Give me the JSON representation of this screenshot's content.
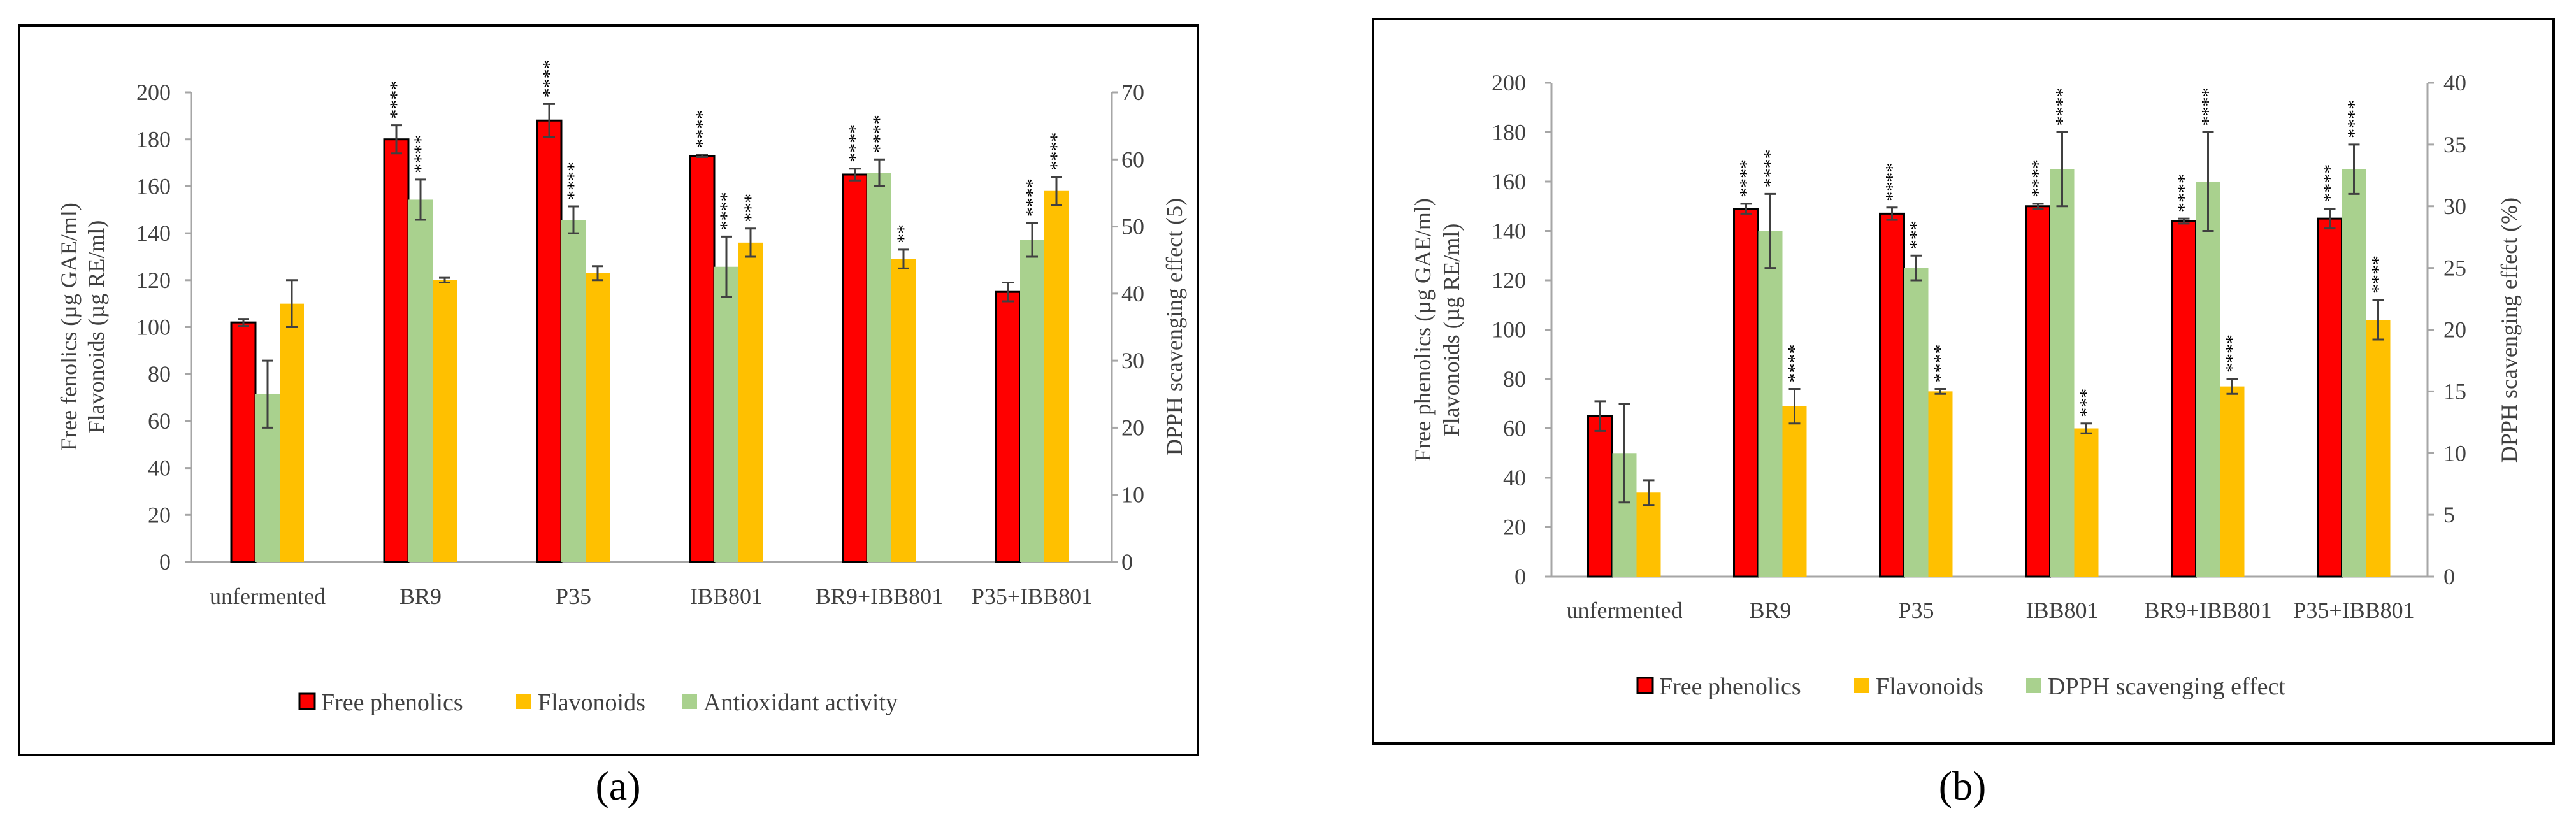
{
  "colors": {
    "free_phenolics": "#ff0000",
    "flavonoids": "#ffc000",
    "antioxidant": "#a9d18e",
    "bar_outline": "#000000",
    "axis": "#a6a6a6",
    "text": "#404040"
  },
  "chart_data": [
    {
      "panel_label": "(a)",
      "type": "bar",
      "categories": [
        "unfermented",
        "BR9",
        "P35",
        "IBB801",
        "BR9+IBB801",
        "P35+IBB801"
      ],
      "y_left_label_line1": "Free fenolics (µg GAE/ml)",
      "y_left_label_line2": "Flavonoids (µg RE/ml)",
      "y_right_label": "DPPH scavenging effect (5)",
      "ylim_left": [
        0,
        200
      ],
      "ylim_right": [
        0,
        70
      ],
      "left_ticks": [
        "0",
        "20",
        "40",
        "60",
        "80",
        "100",
        "120",
        "140",
        "160",
        "180",
        "200"
      ],
      "right_ticks": [
        "0",
        "10",
        "20",
        "30",
        "40",
        "50",
        "60",
        "70"
      ],
      "bar_order": [
        "Free phenolics",
        "Antioxidant activity",
        "Flavonoids"
      ],
      "legend": [
        "Free phenolics",
        "Flavonoids",
        "Antioxidant activity"
      ],
      "series": [
        {
          "name": "Free phenolics",
          "color_key": "free_phenolics",
          "axis": "left",
          "values": [
            102,
            180,
            188,
            173,
            165,
            115
          ],
          "errors": [
            1.5,
            6,
            7,
            0.5,
            2.5,
            4
          ],
          "sig": [
            "",
            "****",
            "****",
            "****",
            "****",
            ""
          ]
        },
        {
          "name": "Antioxidant activity",
          "color_key": "antioxidant",
          "axis": "right",
          "values": [
            25,
            54,
            51,
            44,
            58,
            48
          ],
          "errors": [
            5,
            3,
            2,
            4.5,
            2,
            2.5
          ],
          "sig": [
            "",
            "****",
            "****",
            "****",
            "****",
            "****"
          ]
        },
        {
          "name": "Flavonoids",
          "color_key": "flavonoids",
          "axis": "left",
          "values": [
            110,
            120,
            123,
            136,
            129,
            158
          ],
          "errors": [
            10,
            1,
            3,
            6,
            4,
            6
          ],
          "sig": [
            "",
            "",
            "",
            "***",
            "**",
            "****"
          ]
        }
      ]
    },
    {
      "panel_label": "(b)",
      "type": "bar",
      "categories": [
        "unfermented",
        "BR9",
        "P35",
        "IBB801",
        "BR9+IBB801",
        "P35+IBB801"
      ],
      "y_left_label_line1": "Free phenolics (µg GAE/ml)",
      "y_left_label_line2": "Flavonoids (µg RE/ml)",
      "y_right_label": "DPPH scavenging effect (%)",
      "ylim_left": [
        0,
        200
      ],
      "ylim_right": [
        0,
        40
      ],
      "left_ticks": [
        "0",
        "20",
        "40",
        "60",
        "80",
        "100",
        "120",
        "140",
        "160",
        "180",
        "200"
      ],
      "right_ticks": [
        "0",
        "5",
        "10",
        "15",
        "20",
        "25",
        "30",
        "35",
        "40"
      ],
      "bar_order": [
        "Free phenolics",
        "DPPH scavenging effect",
        "Flavonoids"
      ],
      "legend": [
        "Free phenolics",
        "Flavonoids",
        "DPPH scavenging effect"
      ],
      "series": [
        {
          "name": "Free phenolics",
          "color_key": "free_phenolics",
          "axis": "left",
          "values": [
            65,
            149,
            147,
            150,
            144,
            145
          ],
          "errors": [
            6,
            2,
            2.5,
            1,
            1,
            4
          ],
          "sig": [
            "",
            "****",
            "****",
            "****",
            "****",
            "****"
          ]
        },
        {
          "name": "DPPH scavenging effect",
          "color_key": "antioxidant",
          "axis": "right",
          "values": [
            10,
            28,
            25,
            33,
            32,
            33
          ],
          "errors": [
            4,
            3,
            1,
            3,
            4,
            2
          ],
          "sig": [
            "",
            "****",
            "***",
            "****",
            "****",
            "****"
          ]
        },
        {
          "name": "Flavonoids",
          "color_key": "flavonoids",
          "axis": "left",
          "values": [
            34,
            69,
            75,
            60,
            77,
            104
          ],
          "errors": [
            5,
            7,
            1,
            2,
            3,
            8
          ],
          "sig": [
            "",
            "****",
            "****",
            "***",
            "****",
            "****"
          ]
        }
      ]
    }
  ]
}
